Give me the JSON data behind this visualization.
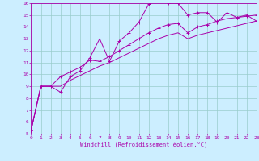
{
  "xlabel": "Windchill (Refroidissement éolien,°C)",
  "bg_color": "#cceeff",
  "line_color": "#aa00aa",
  "grid_color": "#99cccc",
  "xlim": [
    0,
    23
  ],
  "ylim": [
    5,
    16
  ],
  "xticks": [
    0,
    1,
    2,
    3,
    4,
    5,
    6,
    7,
    8,
    9,
    10,
    11,
    12,
    13,
    14,
    15,
    16,
    17,
    18,
    19,
    20,
    21,
    22,
    23
  ],
  "yticks": [
    5,
    6,
    7,
    8,
    9,
    10,
    11,
    12,
    13,
    14,
    15,
    16
  ],
  "series1_x": [
    0,
    1,
    2,
    3,
    4,
    5,
    6,
    7,
    8,
    9,
    10,
    11,
    12,
    13,
    14,
    15,
    16,
    17,
    18,
    19,
    20,
    21,
    22,
    23
  ],
  "series1_y": [
    5.3,
    9.0,
    9.0,
    8.5,
    9.8,
    10.3,
    11.4,
    13.0,
    11.1,
    12.8,
    13.5,
    14.4,
    15.9,
    16.3,
    16.0,
    16.0,
    15.0,
    15.2,
    15.2,
    14.4,
    15.2,
    14.8,
    15.0,
    14.5
  ],
  "series2_x": [
    0,
    1,
    2,
    3,
    4,
    5,
    6,
    7,
    8,
    9,
    10,
    11,
    12,
    13,
    14,
    15,
    16,
    17,
    18,
    19,
    20,
    21,
    22,
    23
  ],
  "series2_y": [
    5.3,
    9.0,
    9.0,
    9.8,
    10.2,
    10.6,
    11.2,
    11.1,
    11.5,
    12.0,
    12.5,
    13.0,
    13.5,
    13.9,
    14.2,
    14.3,
    13.5,
    14.0,
    14.2,
    14.5,
    14.7,
    14.8,
    14.9,
    15.0
  ],
  "series3_x": [
    0,
    1,
    2,
    3,
    4,
    5,
    6,
    7,
    8,
    9,
    10,
    11,
    12,
    13,
    14,
    15,
    16,
    17,
    18,
    19,
    20,
    21,
    22,
    23
  ],
  "series3_y": [
    5.3,
    9.0,
    9.0,
    9.0,
    9.5,
    9.9,
    10.3,
    10.7,
    11.0,
    11.4,
    11.8,
    12.2,
    12.6,
    13.0,
    13.3,
    13.5,
    13.0,
    13.3,
    13.5,
    13.7,
    13.9,
    14.1,
    14.3,
    14.5
  ]
}
